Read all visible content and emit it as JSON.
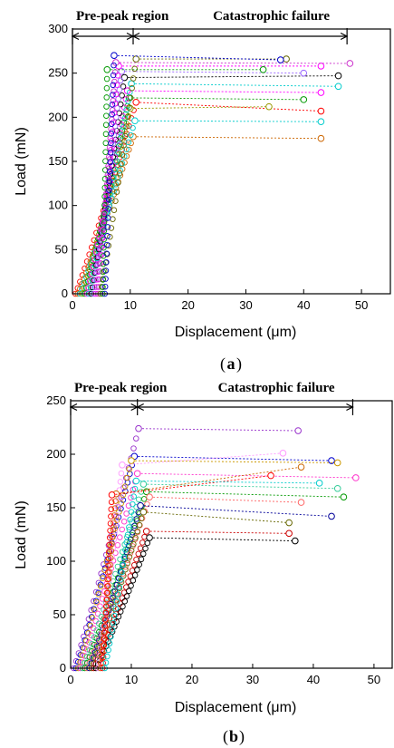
{
  "chart_data": [
    {
      "type": "scatter",
      "panel_label": "a",
      "xlabel": "Displacement (μm)",
      "ylabel": "Load (mN)",
      "xlim": [
        0,
        55
      ],
      "ylim": [
        0,
        300
      ],
      "xticks": [
        "0",
        "10",
        "20",
        "30",
        "40",
        "50"
      ],
      "yticks": [
        "0",
        "50",
        "100",
        "150",
        "200",
        "250",
        "300"
      ],
      "regions": [
        {
          "label": "Pre-peak region",
          "x_start": 0,
          "x_end": 10.5
        },
        {
          "label": "Catastrophic failure",
          "x_start": 10.5,
          "x_end": 47.5
        }
      ],
      "colors": [
        "#ff0000",
        "#0000cc",
        "#009900",
        "#ff00ff",
        "#000000",
        "#00cccc",
        "#9966ff",
        "#666600",
        "#cc33cc",
        "#ff9999",
        "#3366ff",
        "#cc6600"
      ],
      "series": [
        {
          "peak_x": 11.0,
          "peak_y": 217,
          "end_x": 43,
          "end_y": 207,
          "color": "#ff0000"
        },
        {
          "peak_x": 10.5,
          "peak_y": 178,
          "end_x": 43,
          "end_y": 176,
          "color": "#cc6600"
        },
        {
          "peak_x": 10.8,
          "peak_y": 196,
          "end_x": 43,
          "end_y": 195,
          "color": "#00cccc"
        },
        {
          "peak_x": 10.0,
          "peak_y": 210,
          "end_x": 34,
          "end_y": 212,
          "color": "#999900"
        },
        {
          "peak_x": 9.8,
          "peak_y": 222,
          "end_x": 40,
          "end_y": 220,
          "color": "#009900"
        },
        {
          "peak_x": 9.5,
          "peak_y": 230,
          "end_x": 43,
          "end_y": 228,
          "color": "#ff00ff"
        },
        {
          "peak_x": 10.2,
          "peak_y": 238,
          "end_x": 46,
          "end_y": 235,
          "color": "#00cccc"
        },
        {
          "peak_x": 9.0,
          "peak_y": 245,
          "end_x": 46,
          "end_y": 247,
          "color": "#000000"
        },
        {
          "peak_x": 8.5,
          "peak_y": 252,
          "end_x": 40,
          "end_y": 250,
          "color": "#9966ff"
        },
        {
          "peak_x": 8.0,
          "peak_y": 258,
          "end_x": 43,
          "end_y": 258,
          "color": "#ff00ff"
        },
        {
          "peak_x": 7.5,
          "peak_y": 262,
          "end_x": 48,
          "end_y": 261,
          "color": "#cc33cc"
        },
        {
          "peak_x": 11.0,
          "peak_y": 266,
          "end_x": 37,
          "end_y": 266,
          "color": "#666600"
        },
        {
          "peak_x": 6.0,
          "peak_y": 254,
          "end_x": 33,
          "end_y": 254,
          "color": "#009900"
        },
        {
          "peak_x": 7.2,
          "peak_y": 270,
          "end_x": 36,
          "end_y": 265,
          "color": "#0000cc"
        }
      ]
    },
    {
      "type": "scatter",
      "panel_label": "b",
      "xlabel": "Displacement (μm)",
      "ylabel": "Load (mN)",
      "xlim": [
        0,
        53
      ],
      "ylim": [
        0,
        250
      ],
      "xticks": [
        "0",
        "10",
        "20",
        "30",
        "40",
        "50"
      ],
      "yticks": [
        "0",
        "50",
        "100",
        "150",
        "200",
        "250"
      ],
      "regions": [
        {
          "label": "Pre-peak region",
          "x_start": 0,
          "x_end": 11
        },
        {
          "label": "Catastrophic failure",
          "x_start": 11,
          "x_end": 46.5
        }
      ],
      "series": [
        {
          "peak_x": 11.2,
          "peak_y": 224,
          "end_x": 37.5,
          "end_y": 222,
          "color": "#9933cc"
        },
        {
          "peak_x": 10.5,
          "peak_y": 198,
          "end_x": 43,
          "end_y": 194,
          "color": "#0000cc"
        },
        {
          "peak_x": 10.0,
          "peak_y": 194,
          "end_x": 44,
          "end_y": 192,
          "color": "#cc9900"
        },
        {
          "peak_x": 11.0,
          "peak_y": 182,
          "end_x": 47,
          "end_y": 178,
          "color": "#ff33cc"
        },
        {
          "peak_x": 12.0,
          "peak_y": 172,
          "end_x": 44,
          "end_y": 168,
          "color": "#33cc99"
        },
        {
          "peak_x": 12.5,
          "peak_y": 165,
          "end_x": 45,
          "end_y": 160,
          "color": "#009900"
        },
        {
          "peak_x": 13.0,
          "peak_y": 160,
          "end_x": 38,
          "end_y": 155,
          "color": "#ff6666"
        },
        {
          "peak_x": 11.5,
          "peak_y": 152,
          "end_x": 43,
          "end_y": 142,
          "color": "#000099"
        },
        {
          "peak_x": 12.0,
          "peak_y": 146,
          "end_x": 36,
          "end_y": 136,
          "color": "#666600"
        },
        {
          "peak_x": 12.5,
          "peak_y": 128,
          "end_x": 36,
          "end_y": 126,
          "color": "#cc0000"
        },
        {
          "peak_x": 13.0,
          "peak_y": 122,
          "end_x": 37,
          "end_y": 119,
          "color": "#000000"
        },
        {
          "peak_x": 8.5,
          "peak_y": 190,
          "end_x": 35,
          "end_y": 201,
          "color": "#ff99ff"
        },
        {
          "peak_x": 7.5,
          "peak_y": 163,
          "end_x": 38,
          "end_y": 188,
          "color": "#cc6600"
        },
        {
          "peak_x": 6.8,
          "peak_y": 162,
          "end_x": 33,
          "end_y": 180,
          "color": "#ff0000"
        },
        {
          "peak_x": 10.8,
          "peak_y": 175,
          "end_x": 41,
          "end_y": 173,
          "color": "#00cccc"
        }
      ]
    }
  ]
}
